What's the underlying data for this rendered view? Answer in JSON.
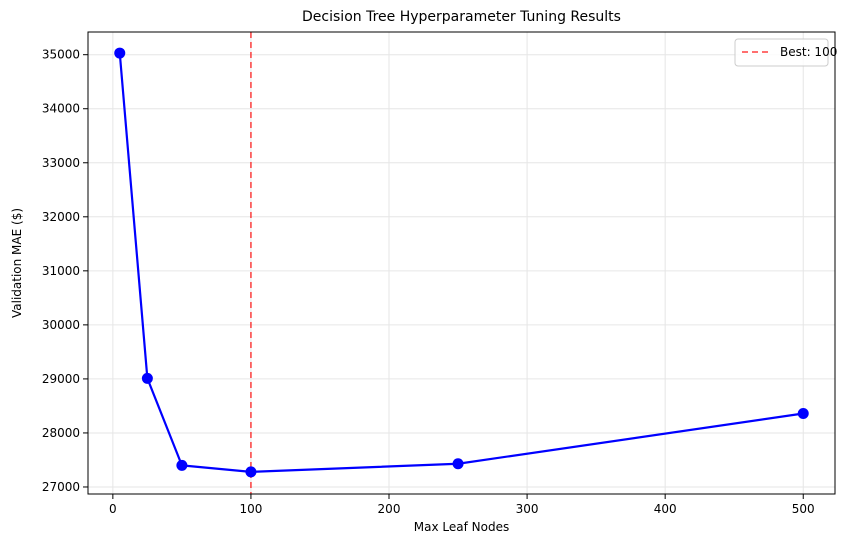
{
  "chart_data": {
    "type": "line",
    "title": "Decision Tree Hyperparameter Tuning Results",
    "xlabel": "Max Leaf Nodes",
    "ylabel": "Validation MAE ($)",
    "x": [
      5,
      25,
      50,
      100,
      250,
      500
    ],
    "series": [
      {
        "values": [
          35030,
          29010,
          27400,
          27280,
          27430,
          28360
        ],
        "color": "#0000ff"
      }
    ],
    "xlim": [
      -18,
      523
    ],
    "ylim": [
      26870,
      35420
    ],
    "xticks": [
      0,
      100,
      200,
      300,
      400,
      500
    ],
    "yticks": [
      27000,
      28000,
      29000,
      30000,
      31000,
      32000,
      33000,
      34000,
      35000
    ],
    "grid": true,
    "reference_line": {
      "x": 100,
      "label": "Best: 100",
      "color": "#ff0000",
      "style": "dashed"
    },
    "legend": {
      "placement": "top-right",
      "entries": [
        "Best: 100"
      ]
    }
  }
}
